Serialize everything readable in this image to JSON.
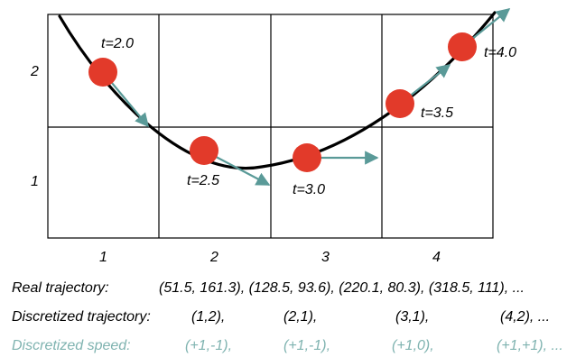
{
  "grid": {
    "row_labels": [
      "2",
      "1"
    ],
    "col_labels": [
      "1",
      "2",
      "3",
      "4"
    ]
  },
  "points": [
    {
      "label": "t=2.0"
    },
    {
      "label": "t=2.5"
    },
    {
      "label": "t=3.0"
    },
    {
      "label": "t=3.5"
    },
    {
      "label": "t=4.0"
    }
  ],
  "colors": {
    "point": "#e23a2a",
    "arrow": "#5a9a98",
    "curve": "#000000",
    "grid": "#000000",
    "speed_text": "#7fb3b0"
  },
  "lines": {
    "real": {
      "label": "Real trajectory:",
      "values": [
        "(51.5, 161.3), (128.5, 93.6), (220.1, 80.3), (318.5, 111), ..."
      ]
    },
    "discretized": {
      "label": "Discretized trajectory:",
      "values": [
        "(1,2),",
        "(2,1),",
        "(3,1),",
        "(4,2), ..."
      ]
    },
    "speed": {
      "label": "Discretized speed:",
      "values": [
        "(+1,-1),",
        "(+1,-1),",
        "(+1,0),",
        "(+1,+1), ..."
      ]
    }
  }
}
